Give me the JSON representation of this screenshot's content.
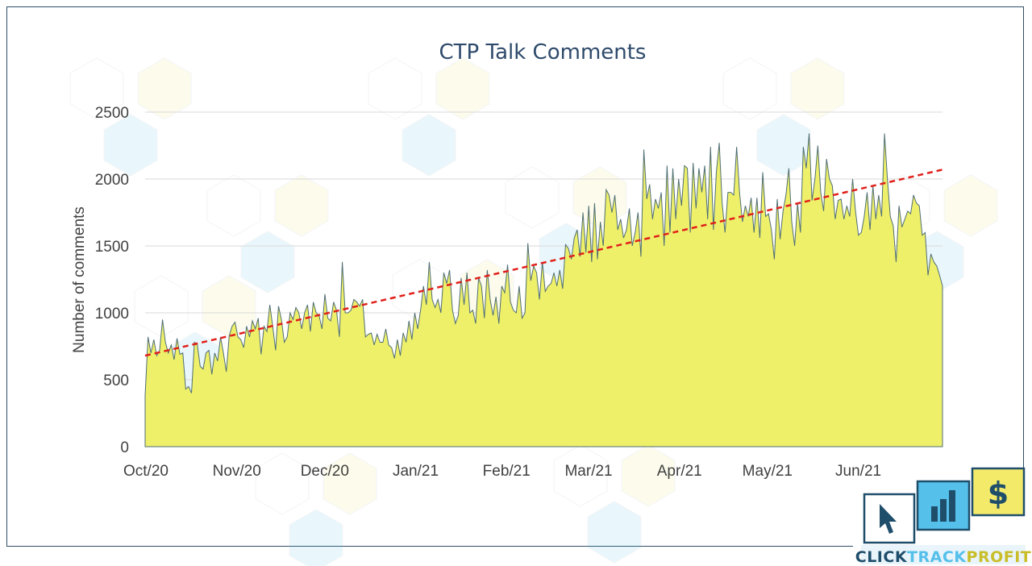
{
  "brand": {
    "wordmark_parts": [
      "CLICK",
      "TRACK",
      "PROFIT"
    ],
    "colors": {
      "navy": "#1f4e6b",
      "sky": "#55c0ea",
      "yellow": "#f3ea6a"
    },
    "icons": [
      "cursor-icon",
      "bar-chart-icon",
      "dollar-icon"
    ]
  },
  "chart_data": {
    "type": "area",
    "title": "CTP Talk Comments",
    "xlabel": "",
    "ylabel": "Number of comments",
    "ylim": [
      0,
      2500
    ],
    "yticks": [
      0,
      500,
      1000,
      1500,
      2000,
      2500
    ],
    "grid": true,
    "legend": "none",
    "x_tick_labels": [
      "Oct/20",
      "Nov/20",
      "Dec/20",
      "Jan/21",
      "Feb/21",
      "Mar/21",
      "Apr/21",
      "May/21",
      "Jun/21"
    ],
    "x_start": "2020-10-01",
    "x_end": "2021-06-30",
    "fill_color": "#eef06a",
    "line_color": "#4f6e73",
    "trendline": {
      "type": "linear",
      "start_value": 680,
      "end_value": 2070,
      "color": "#e0201b",
      "style": "dashed"
    },
    "series": [
      {
        "values": [
          380,
          820,
          700,
          800,
          680,
          720,
          950,
          780,
          700,
          760,
          650,
          810,
          690,
          700,
          430,
          450,
          400,
          780,
          760,
          600,
          580,
          700,
          720,
          540,
          700,
          640,
          820,
          700,
          560,
          830,
          900,
          930,
          820,
          800,
          740,
          900,
          820,
          940,
          880,
          960,
          690,
          900,
          860,
          1060,
          900,
          720,
          1050,
          950,
          780,
          820,
          1000,
          950,
          1040,
          1000,
          880,
          1000,
          1060,
          860,
          1080,
          1000,
          980,
          880,
          1140,
          960,
          940,
          1080,
          1020,
          820,
          1380,
          1000,
          1000,
          1020,
          1100,
          1080,
          1050,
          1100,
          820,
          840,
          850,
          760,
          840,
          780,
          780,
          880,
          760,
          740,
          660,
          800,
          680,
          850,
          780,
          940,
          800,
          1000,
          880,
          1020,
          1200,
          1060,
          1380,
          1100,
          1040,
          1100,
          1000,
          1300,
          1220,
          1320,
          1020,
          920,
          980,
          1260,
          1060,
          1300,
          1000,
          1020,
          920,
          1260,
          1200,
          960,
          1320,
          1100,
          980,
          1120,
          920,
          1200,
          1150,
          1360,
          1080,
          1020,
          1000,
          1200,
          960,
          1000,
          1520,
          1240,
          1350,
          1300,
          1100,
          1380,
          1160,
          1200,
          1220,
          1300,
          1200,
          1320,
          1180,
          1510,
          1480,
          1400,
          1560,
          1620,
          1420,
          1750,
          1450,
          1800,
          1380,
          1820,
          1400,
          1680,
          1500,
          1920,
          1880,
          1750,
          1880,
          1620,
          1700,
          1560,
          1620,
          1780,
          1500,
          1600,
          1750,
          1420,
          2220,
          1850,
          1960,
          1700,
          1850,
          1780,
          1900,
          1500,
          2100,
          1600,
          2080,
          1700,
          2000,
          1800,
          2100,
          2080,
          1600,
          2120,
          1780,
          2080,
          1900,
          2100,
          1700,
          2240,
          1620,
          2050,
          2270,
          1820,
          1600,
          1900,
          1900,
          1880,
          2240,
          1900,
          1680,
          1800,
          1720,
          1860,
          1600,
          1860,
          1560,
          2050,
          1720,
          1740,
          1620,
          1400,
          1850,
          1550,
          1760,
          1880,
          2080,
          1680,
          1500,
          1820,
          1600,
          2240,
          2080,
          2340,
          1840,
          2000,
          2250,
          1900,
          1760,
          2150,
          2000,
          1950,
          1700,
          1840,
          1850,
          1700,
          1800,
          1720,
          2000,
          1760,
          1580,
          1600,
          1720,
          1900,
          1620,
          1950,
          1700,
          1880,
          1720,
          2340,
          2000,
          1720,
          1650,
          1380,
          1800,
          1640,
          1700,
          1760,
          1740,
          1880,
          1820,
          1800,
          1580,
          1600,
          1280,
          1440,
          1380,
          1350,
          1280,
          1200
        ]
      }
    ]
  }
}
